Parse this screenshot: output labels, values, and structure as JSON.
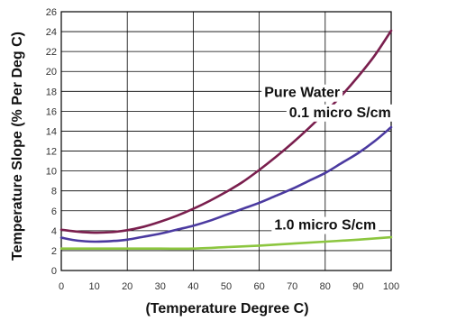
{
  "chart_data": {
    "type": "line",
    "title": "",
    "xlabel": "(Temperature Degree C)",
    "ylabel": "Temperature Slope (% Per Deg C)",
    "xlim": [
      0,
      100
    ],
    "ylim": [
      0,
      26
    ],
    "xticks": [
      0,
      10,
      20,
      30,
      40,
      50,
      60,
      70,
      80,
      90,
      100
    ],
    "yticks": [
      0,
      2,
      4,
      6,
      8,
      10,
      12,
      14,
      16,
      18,
      20,
      22,
      24,
      26
    ],
    "grid": true,
    "series": [
      {
        "name": "Pure Water",
        "color": "#7a1f4e",
        "x": [
          0,
          5,
          10,
          15,
          20,
          25,
          30,
          35,
          40,
          45,
          50,
          55,
          60,
          65,
          70,
          75,
          80,
          85,
          90,
          95,
          100
        ],
        "y": [
          4.1,
          3.9,
          3.8,
          3.85,
          4.05,
          4.4,
          4.9,
          5.5,
          6.2,
          7.0,
          7.9,
          8.9,
          10.1,
          11.4,
          12.8,
          14.3,
          15.9,
          17.6,
          19.5,
          21.6,
          24.1
        ]
      },
      {
        "name": "0.1 micro S/cm",
        "color": "#4b3aa0",
        "x": [
          0,
          5,
          10,
          15,
          20,
          25,
          30,
          35,
          40,
          45,
          50,
          55,
          60,
          65,
          70,
          75,
          80,
          85,
          90,
          95,
          100
        ],
        "y": [
          3.3,
          3.0,
          2.9,
          2.95,
          3.1,
          3.4,
          3.7,
          4.1,
          4.5,
          5.0,
          5.6,
          6.2,
          6.8,
          7.5,
          8.2,
          9.0,
          9.8,
          10.8,
          11.8,
          13.0,
          14.4
        ]
      },
      {
        "name": "1.0 micro S/cm",
        "color": "#8cc63f",
        "x": [
          0,
          10,
          20,
          30,
          40,
          50,
          60,
          70,
          80,
          90,
          100
        ],
        "y": [
          2.2,
          2.2,
          2.2,
          2.2,
          2.2,
          2.35,
          2.5,
          2.7,
          2.9,
          3.1,
          3.35
        ]
      }
    ],
    "annotations": [
      {
        "text": "Pure Water",
        "x": 73,
        "y": 17.8,
        "series": 0
      },
      {
        "text": "0.1 micro S/cm",
        "x": 84.5,
        "y": 15.8,
        "series": 1
      },
      {
        "text": "1.0 micro S/cm",
        "x": 80,
        "y": 4.5,
        "series": 2
      }
    ]
  }
}
